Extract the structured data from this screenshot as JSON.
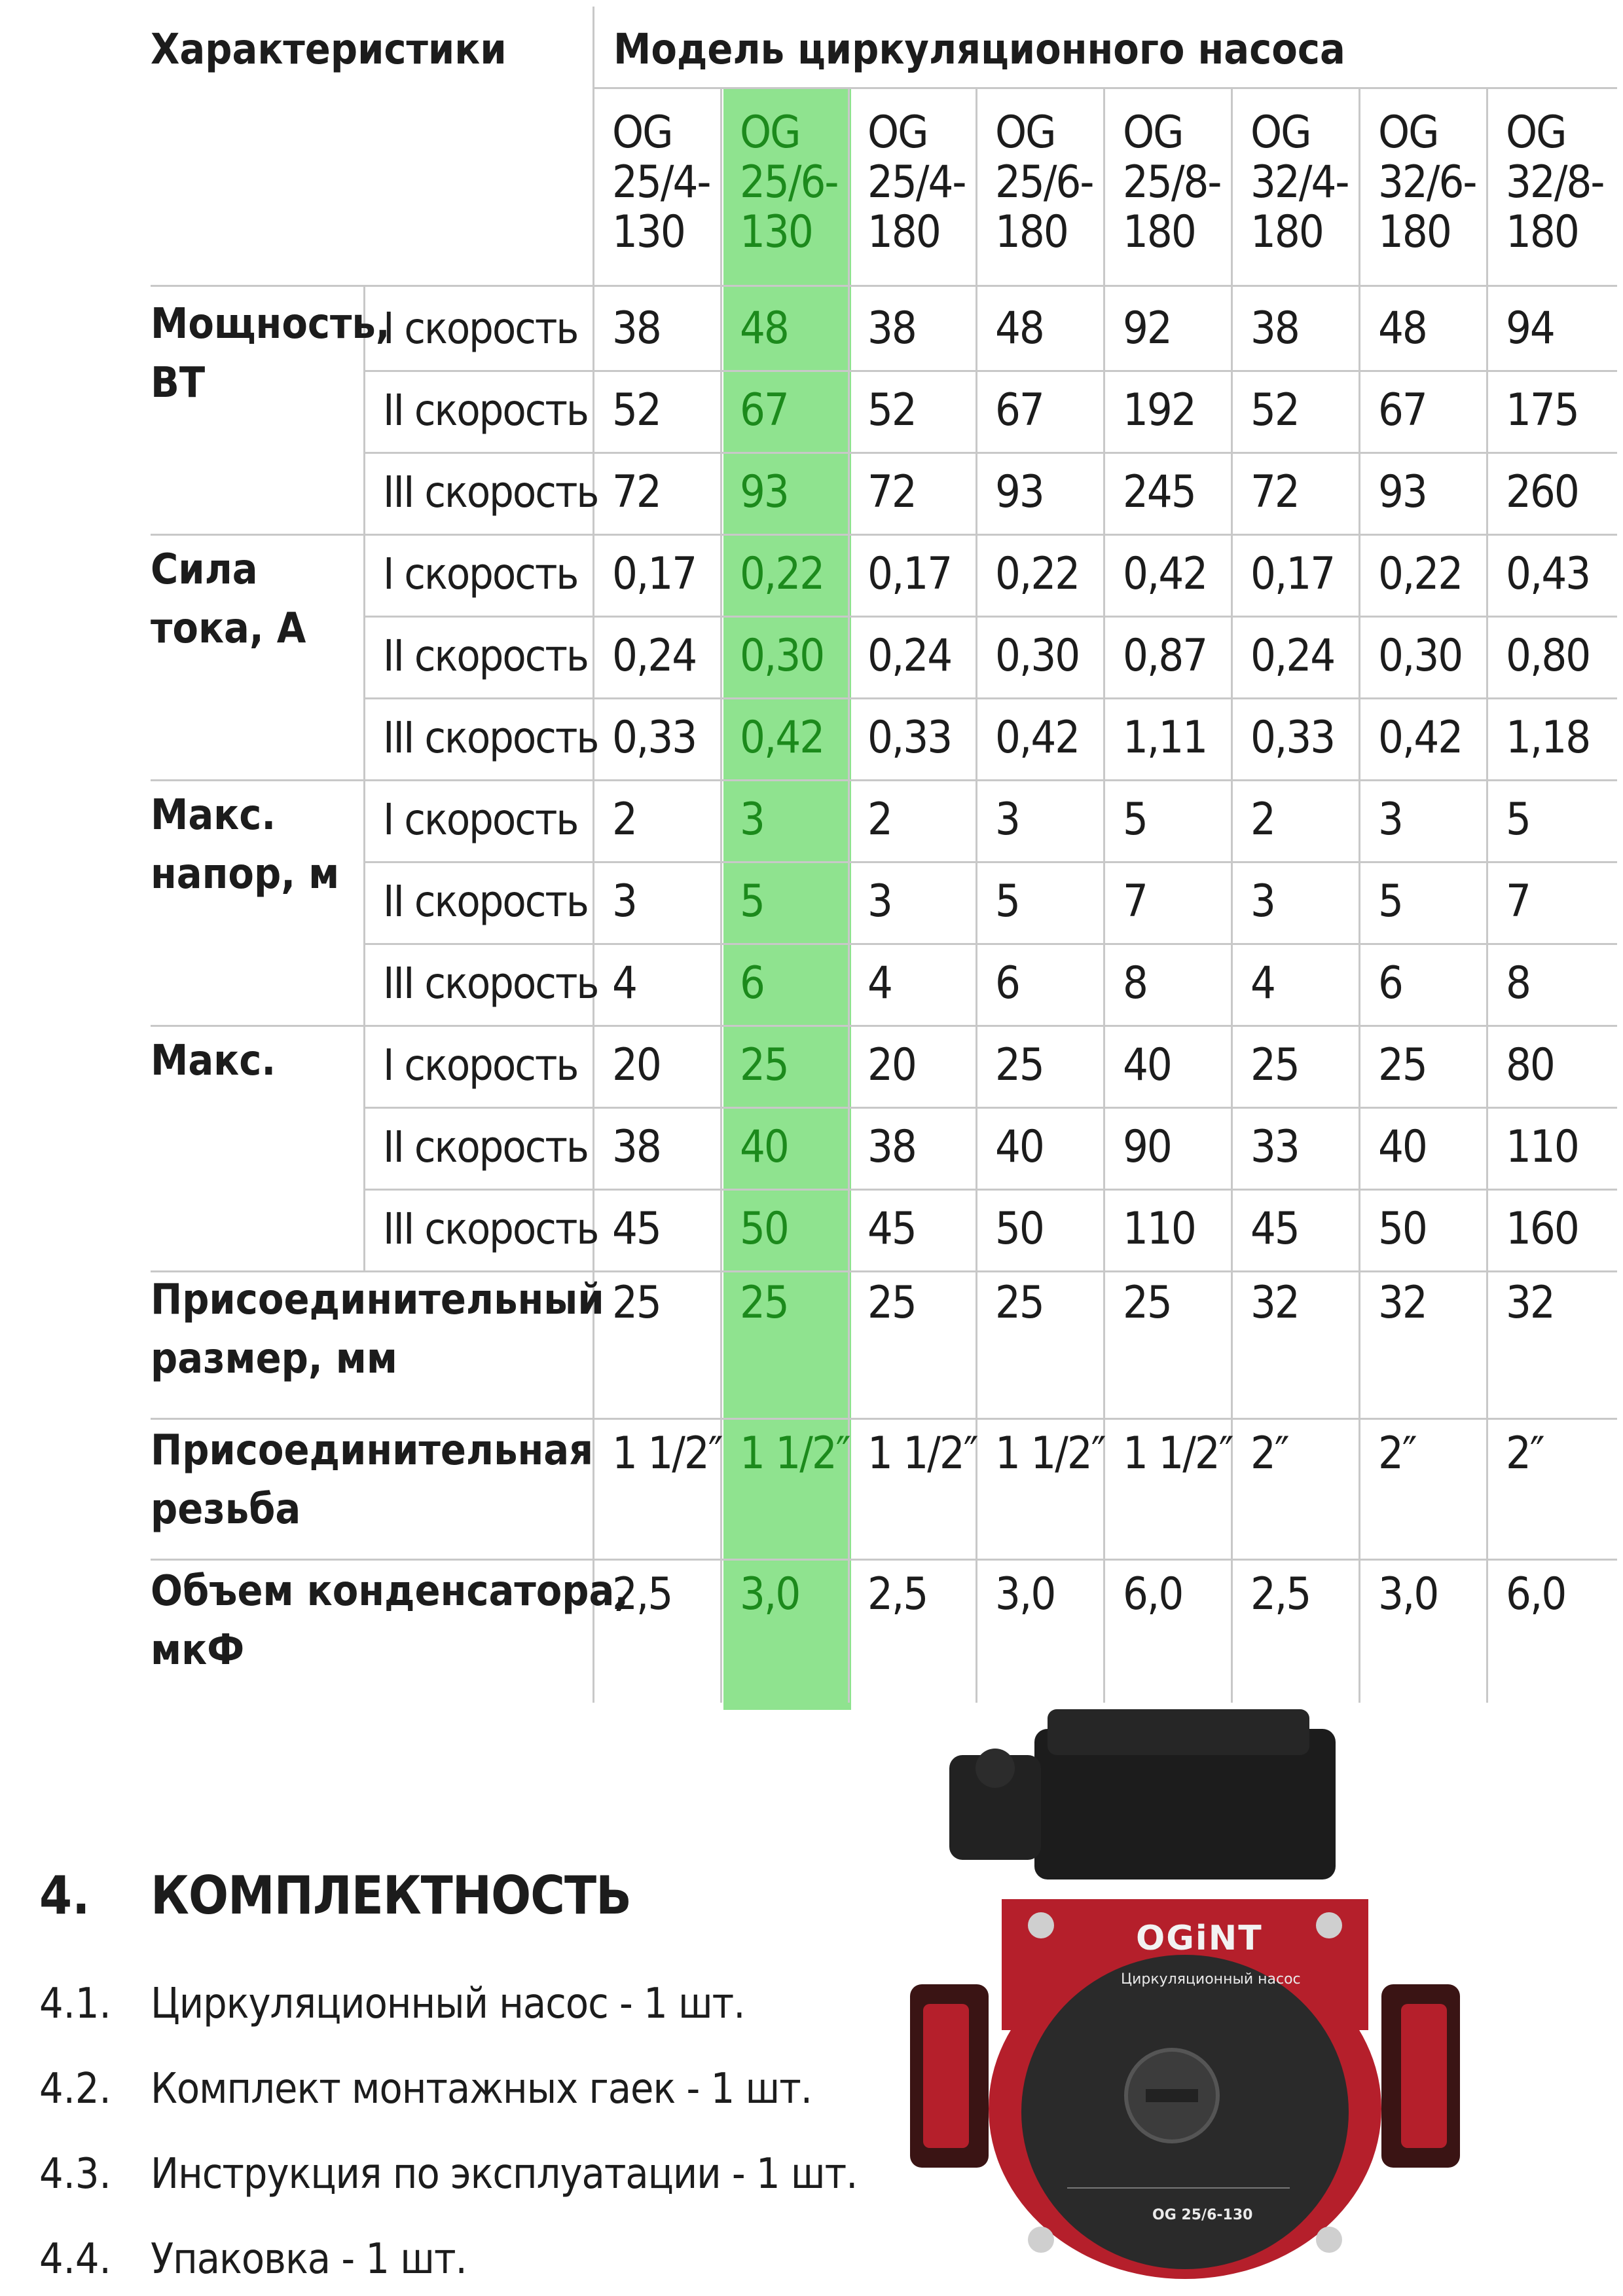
{
  "table": {
    "char_header": "Характеристики",
    "model_header": "Модель циркуляционного насоса",
    "models": [
      "OG\n25/4-\n130",
      "OG\n25/6-\n130",
      "OG\n25/4-\n180",
      "OG\n25/6-\n180",
      "OG\n25/8-\n180",
      "OG\n32/4-\n180",
      "OG\n32/6-\n180",
      "OG\n32/8-\n180"
    ],
    "highlight_color": "#8fe38f",
    "speeds": [
      "I скорость",
      "II скорость",
      "III скорость"
    ],
    "groups": [
      {
        "label": "Мощность,\nВТ",
        "rows": [
          [
            "38",
            "48",
            "38",
            "48",
            "92",
            "38",
            "48",
            "94"
          ],
          [
            "52",
            "67",
            "52",
            "67",
            "192",
            "52",
            "67",
            "175"
          ],
          [
            "72",
            "93",
            "72",
            "93",
            "245",
            "72",
            "93",
            "260"
          ]
        ]
      },
      {
        "label": "Сила\nтока, А",
        "rows": [
          [
            "0,17",
            "0,22",
            "0,17",
            "0,22",
            "0,42",
            "0,17",
            "0,22",
            "0,43"
          ],
          [
            "0,24",
            "0,30",
            "0,24",
            "0,30",
            "0,87",
            "0,24",
            "0,30",
            "0,80"
          ],
          [
            "0,33",
            "0,42",
            "0,33",
            "0,42",
            "1,11",
            "0,33",
            "0,42",
            "1,18"
          ]
        ]
      },
      {
        "label": "Макс.\nнапор, м",
        "rows": [
          [
            "2",
            "3",
            "2",
            "3",
            "5",
            "2",
            "3",
            "5"
          ],
          [
            "3",
            "5",
            "3",
            "5",
            "7",
            "3",
            "5",
            "7"
          ],
          [
            "4",
            "6",
            "4",
            "6",
            "8",
            "4",
            "6",
            "8"
          ]
        ]
      },
      {
        "label": "Макс.",
        "rows": [
          [
            "20",
            "25",
            "20",
            "25",
            "40",
            "25",
            "25",
            "80"
          ],
          [
            "38",
            "40",
            "38",
            "40",
            "90",
            "33",
            "40",
            "110"
          ],
          [
            "45",
            "50",
            "45",
            "50",
            "110",
            "45",
            "50",
            "160"
          ]
        ]
      }
    ],
    "single_rows": [
      {
        "label": "Присоединительный\nразмер, мм",
        "values": [
          "25",
          "25",
          "25",
          "25",
          "25",
          "32",
          "32",
          "32"
        ]
      },
      {
        "label": "Присоединительная\nрезьба",
        "values": [
          "1 1/2″",
          "1 1/2″",
          "1 1/2″",
          "1 1/2″",
          "1 1/2″",
          "2″",
          "2″",
          "2″"
        ]
      },
      {
        "label": "Объем конденсатора,\nмкФ",
        "values": [
          "2,5",
          "3,0",
          "2,5",
          "3,0",
          "6,0",
          "2,5",
          "3,0",
          "6,0"
        ]
      }
    ]
  },
  "section": {
    "number": "4.",
    "title": "КОМПЛЕКТНОСТЬ",
    "items": [
      {
        "num": "4.1.",
        "text": "Циркуляционный насос - 1 шт."
      },
      {
        "num": "4.2.",
        "text": "Комплект монтажных гаек - 1 шт."
      },
      {
        "num": "4.3.",
        "text": "Инструкция по эксплуатации - 1 шт."
      },
      {
        "num": "4.4.",
        "text": "Упаковка - 1 шт."
      }
    ]
  },
  "product_image": {
    "logo": "OGiNT",
    "label_line1": "Циркуляционный насос",
    "model_label": "OG 25/6-130"
  }
}
